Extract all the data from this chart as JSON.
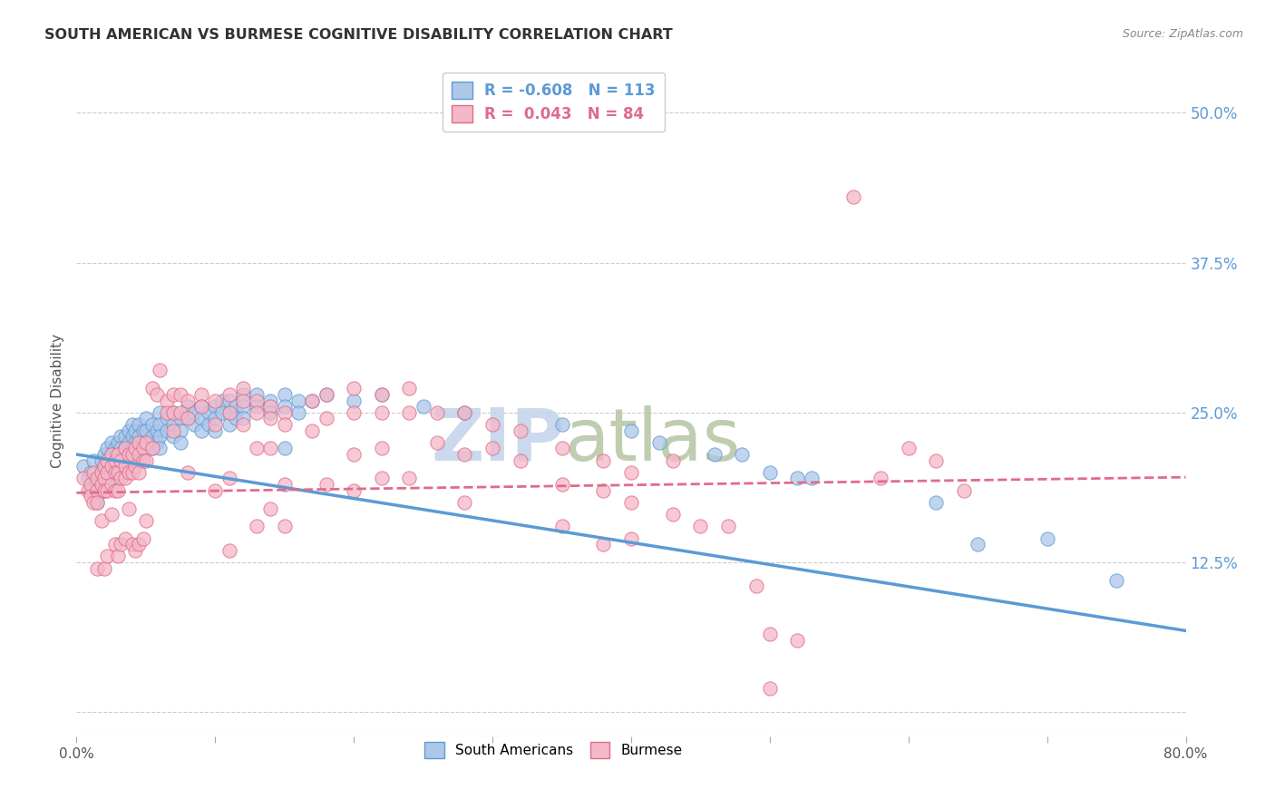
{
  "title": "SOUTH AMERICAN VS BURMESE COGNITIVE DISABILITY CORRELATION CHART",
  "source": "Source: ZipAtlas.com",
  "ylabel": "Cognitive Disability",
  "xlim": [
    0.0,
    0.8
  ],
  "ylim": [
    -0.02,
    0.54
  ],
  "ytick_vals": [
    0.0,
    0.125,
    0.25,
    0.375,
    0.5
  ],
  "ytick_labels": [
    "",
    "12.5%",
    "25.0%",
    "37.5%",
    "50.0%"
  ],
  "xtick_positions": [
    0.0,
    0.1,
    0.2,
    0.3,
    0.4,
    0.5,
    0.6,
    0.7,
    0.8
  ],
  "xtick_labels": [
    "0.0%",
    "",
    "",
    "",
    "",
    "",
    "",
    "",
    "80.0%"
  ],
  "south_american_color": "#aec6e8",
  "south_american_edge_color": "#5b9bd5",
  "burmese_color": "#f4b8c8",
  "burmese_edge_color": "#e06b8b",
  "watermark_zip_color": "#ccd9ee",
  "watermark_atlas_color": "#b8cfb0",
  "background_color": "#ffffff",
  "grid_color": "#cccccc",
  "title_color": "#333333",
  "source_color": "#888888",
  "right_label_color": "#5b9bd5",
  "sa_line_x": [
    0.0,
    0.8
  ],
  "sa_line_y": [
    0.215,
    0.068
  ],
  "bu_line_x": [
    0.0,
    0.8
  ],
  "bu_line_y": [
    0.183,
    0.196
  ],
  "south_american_points": [
    [
      0.005,
      0.205
    ],
    [
      0.008,
      0.195
    ],
    [
      0.01,
      0.2
    ],
    [
      0.01,
      0.185
    ],
    [
      0.012,
      0.21
    ],
    [
      0.015,
      0.195
    ],
    [
      0.015,
      0.185
    ],
    [
      0.015,
      0.175
    ],
    [
      0.018,
      0.21
    ],
    [
      0.018,
      0.2
    ],
    [
      0.018,
      0.19
    ],
    [
      0.02,
      0.215
    ],
    [
      0.02,
      0.205
    ],
    [
      0.02,
      0.195
    ],
    [
      0.02,
      0.185
    ],
    [
      0.022,
      0.22
    ],
    [
      0.022,
      0.21
    ],
    [
      0.022,
      0.2
    ],
    [
      0.025,
      0.225
    ],
    [
      0.025,
      0.215
    ],
    [
      0.025,
      0.205
    ],
    [
      0.025,
      0.195
    ],
    [
      0.028,
      0.22
    ],
    [
      0.028,
      0.21
    ],
    [
      0.028,
      0.2
    ],
    [
      0.03,
      0.225
    ],
    [
      0.03,
      0.215
    ],
    [
      0.03,
      0.205
    ],
    [
      0.03,
      0.195
    ],
    [
      0.032,
      0.23
    ],
    [
      0.032,
      0.22
    ],
    [
      0.032,
      0.21
    ],
    [
      0.035,
      0.23
    ],
    [
      0.035,
      0.22
    ],
    [
      0.035,
      0.21
    ],
    [
      0.035,
      0.2
    ],
    [
      0.038,
      0.235
    ],
    [
      0.038,
      0.225
    ],
    [
      0.038,
      0.215
    ],
    [
      0.04,
      0.24
    ],
    [
      0.04,
      0.23
    ],
    [
      0.04,
      0.22
    ],
    [
      0.04,
      0.21
    ],
    [
      0.042,
      0.235
    ],
    [
      0.042,
      0.225
    ],
    [
      0.045,
      0.24
    ],
    [
      0.045,
      0.23
    ],
    [
      0.045,
      0.22
    ],
    [
      0.045,
      0.21
    ],
    [
      0.048,
      0.235
    ],
    [
      0.048,
      0.225
    ],
    [
      0.048,
      0.215
    ],
    [
      0.05,
      0.245
    ],
    [
      0.05,
      0.235
    ],
    [
      0.05,
      0.225
    ],
    [
      0.055,
      0.24
    ],
    [
      0.055,
      0.23
    ],
    [
      0.055,
      0.22
    ],
    [
      0.058,
      0.235
    ],
    [
      0.058,
      0.225
    ],
    [
      0.06,
      0.25
    ],
    [
      0.06,
      0.24
    ],
    [
      0.06,
      0.23
    ],
    [
      0.06,
      0.22
    ],
    [
      0.065,
      0.245
    ],
    [
      0.065,
      0.235
    ],
    [
      0.07,
      0.25
    ],
    [
      0.07,
      0.24
    ],
    [
      0.07,
      0.23
    ],
    [
      0.075,
      0.245
    ],
    [
      0.075,
      0.235
    ],
    [
      0.075,
      0.225
    ],
    [
      0.08,
      0.255
    ],
    [
      0.08,
      0.245
    ],
    [
      0.085,
      0.25
    ],
    [
      0.085,
      0.24
    ],
    [
      0.09,
      0.255
    ],
    [
      0.09,
      0.245
    ],
    [
      0.09,
      0.235
    ],
    [
      0.095,
      0.25
    ],
    [
      0.095,
      0.24
    ],
    [
      0.1,
      0.255
    ],
    [
      0.1,
      0.245
    ],
    [
      0.1,
      0.235
    ],
    [
      0.105,
      0.26
    ],
    [
      0.105,
      0.25
    ],
    [
      0.11,
      0.26
    ],
    [
      0.11,
      0.25
    ],
    [
      0.11,
      0.24
    ],
    [
      0.115,
      0.255
    ],
    [
      0.115,
      0.245
    ],
    [
      0.12,
      0.265
    ],
    [
      0.12,
      0.255
    ],
    [
      0.12,
      0.245
    ],
    [
      0.13,
      0.265
    ],
    [
      0.13,
      0.255
    ],
    [
      0.14,
      0.26
    ],
    [
      0.14,
      0.25
    ],
    [
      0.15,
      0.265
    ],
    [
      0.15,
      0.255
    ],
    [
      0.15,
      0.22
    ],
    [
      0.16,
      0.26
    ],
    [
      0.16,
      0.25
    ],
    [
      0.17,
      0.26
    ],
    [
      0.18,
      0.265
    ],
    [
      0.2,
      0.26
    ],
    [
      0.22,
      0.265
    ],
    [
      0.25,
      0.255
    ],
    [
      0.28,
      0.25
    ],
    [
      0.35,
      0.24
    ],
    [
      0.4,
      0.235
    ],
    [
      0.42,
      0.225
    ],
    [
      0.46,
      0.215
    ],
    [
      0.48,
      0.215
    ],
    [
      0.5,
      0.2
    ],
    [
      0.52,
      0.195
    ],
    [
      0.53,
      0.195
    ],
    [
      0.62,
      0.175
    ],
    [
      0.65,
      0.14
    ],
    [
      0.7,
      0.145
    ],
    [
      0.75,
      0.11
    ]
  ],
  "burmese_points": [
    [
      0.005,
      0.195
    ],
    [
      0.008,
      0.185
    ],
    [
      0.01,
      0.19
    ],
    [
      0.01,
      0.18
    ],
    [
      0.012,
      0.2
    ],
    [
      0.012,
      0.175
    ],
    [
      0.015,
      0.195
    ],
    [
      0.015,
      0.185
    ],
    [
      0.015,
      0.175
    ],
    [
      0.015,
      0.12
    ],
    [
      0.018,
      0.2
    ],
    [
      0.018,
      0.19
    ],
    [
      0.018,
      0.16
    ],
    [
      0.02,
      0.205
    ],
    [
      0.02,
      0.195
    ],
    [
      0.02,
      0.185
    ],
    [
      0.02,
      0.12
    ],
    [
      0.022,
      0.21
    ],
    [
      0.022,
      0.2
    ],
    [
      0.022,
      0.185
    ],
    [
      0.022,
      0.13
    ],
    [
      0.025,
      0.215
    ],
    [
      0.025,
      0.205
    ],
    [
      0.025,
      0.19
    ],
    [
      0.025,
      0.165
    ],
    [
      0.028,
      0.21
    ],
    [
      0.028,
      0.2
    ],
    [
      0.028,
      0.185
    ],
    [
      0.028,
      0.14
    ],
    [
      0.03,
      0.215
    ],
    [
      0.03,
      0.2
    ],
    [
      0.03,
      0.185
    ],
    [
      0.03,
      0.13
    ],
    [
      0.032,
      0.21
    ],
    [
      0.032,
      0.195
    ],
    [
      0.032,
      0.14
    ],
    [
      0.035,
      0.22
    ],
    [
      0.035,
      0.205
    ],
    [
      0.035,
      0.195
    ],
    [
      0.035,
      0.145
    ],
    [
      0.038,
      0.215
    ],
    [
      0.038,
      0.2
    ],
    [
      0.038,
      0.17
    ],
    [
      0.04,
      0.215
    ],
    [
      0.04,
      0.2
    ],
    [
      0.04,
      0.14
    ],
    [
      0.042,
      0.22
    ],
    [
      0.042,
      0.205
    ],
    [
      0.042,
      0.135
    ],
    [
      0.045,
      0.225
    ],
    [
      0.045,
      0.215
    ],
    [
      0.045,
      0.2
    ],
    [
      0.045,
      0.14
    ],
    [
      0.048,
      0.22
    ],
    [
      0.048,
      0.21
    ],
    [
      0.048,
      0.145
    ],
    [
      0.05,
      0.225
    ],
    [
      0.05,
      0.21
    ],
    [
      0.05,
      0.16
    ],
    [
      0.055,
      0.27
    ],
    [
      0.055,
      0.22
    ],
    [
      0.058,
      0.265
    ],
    [
      0.06,
      0.285
    ],
    [
      0.065,
      0.26
    ],
    [
      0.065,
      0.25
    ],
    [
      0.07,
      0.265
    ],
    [
      0.07,
      0.25
    ],
    [
      0.07,
      0.235
    ],
    [
      0.075,
      0.265
    ],
    [
      0.075,
      0.25
    ],
    [
      0.08,
      0.26
    ],
    [
      0.08,
      0.245
    ],
    [
      0.08,
      0.2
    ],
    [
      0.09,
      0.265
    ],
    [
      0.09,
      0.255
    ],
    [
      0.1,
      0.26
    ],
    [
      0.1,
      0.24
    ],
    [
      0.1,
      0.185
    ],
    [
      0.11,
      0.265
    ],
    [
      0.11,
      0.25
    ],
    [
      0.11,
      0.195
    ],
    [
      0.11,
      0.135
    ],
    [
      0.12,
      0.27
    ],
    [
      0.12,
      0.26
    ],
    [
      0.12,
      0.24
    ],
    [
      0.13,
      0.26
    ],
    [
      0.13,
      0.25
    ],
    [
      0.13,
      0.22
    ],
    [
      0.13,
      0.155
    ],
    [
      0.14,
      0.255
    ],
    [
      0.14,
      0.245
    ],
    [
      0.14,
      0.22
    ],
    [
      0.14,
      0.17
    ],
    [
      0.15,
      0.25
    ],
    [
      0.15,
      0.24
    ],
    [
      0.15,
      0.19
    ],
    [
      0.15,
      0.155
    ],
    [
      0.17,
      0.26
    ],
    [
      0.17,
      0.235
    ],
    [
      0.18,
      0.265
    ],
    [
      0.18,
      0.245
    ],
    [
      0.18,
      0.19
    ],
    [
      0.2,
      0.27
    ],
    [
      0.2,
      0.25
    ],
    [
      0.2,
      0.215
    ],
    [
      0.2,
      0.185
    ],
    [
      0.22,
      0.265
    ],
    [
      0.22,
      0.25
    ],
    [
      0.22,
      0.22
    ],
    [
      0.22,
      0.195
    ],
    [
      0.24,
      0.27
    ],
    [
      0.24,
      0.25
    ],
    [
      0.24,
      0.195
    ],
    [
      0.26,
      0.25
    ],
    [
      0.26,
      0.225
    ],
    [
      0.28,
      0.25
    ],
    [
      0.28,
      0.215
    ],
    [
      0.28,
      0.175
    ],
    [
      0.3,
      0.24
    ],
    [
      0.3,
      0.22
    ],
    [
      0.32,
      0.235
    ],
    [
      0.32,
      0.21
    ],
    [
      0.35,
      0.22
    ],
    [
      0.35,
      0.19
    ],
    [
      0.35,
      0.155
    ],
    [
      0.38,
      0.21
    ],
    [
      0.38,
      0.185
    ],
    [
      0.38,
      0.14
    ],
    [
      0.4,
      0.2
    ],
    [
      0.4,
      0.175
    ],
    [
      0.4,
      0.145
    ],
    [
      0.43,
      0.21
    ],
    [
      0.43,
      0.165
    ],
    [
      0.45,
      0.155
    ],
    [
      0.47,
      0.155
    ],
    [
      0.49,
      0.105
    ],
    [
      0.5,
      0.065
    ],
    [
      0.5,
      0.02
    ],
    [
      0.52,
      0.06
    ],
    [
      0.56,
      0.43
    ],
    [
      0.58,
      0.195
    ],
    [
      0.6,
      0.22
    ],
    [
      0.62,
      0.21
    ],
    [
      0.64,
      0.185
    ]
  ]
}
